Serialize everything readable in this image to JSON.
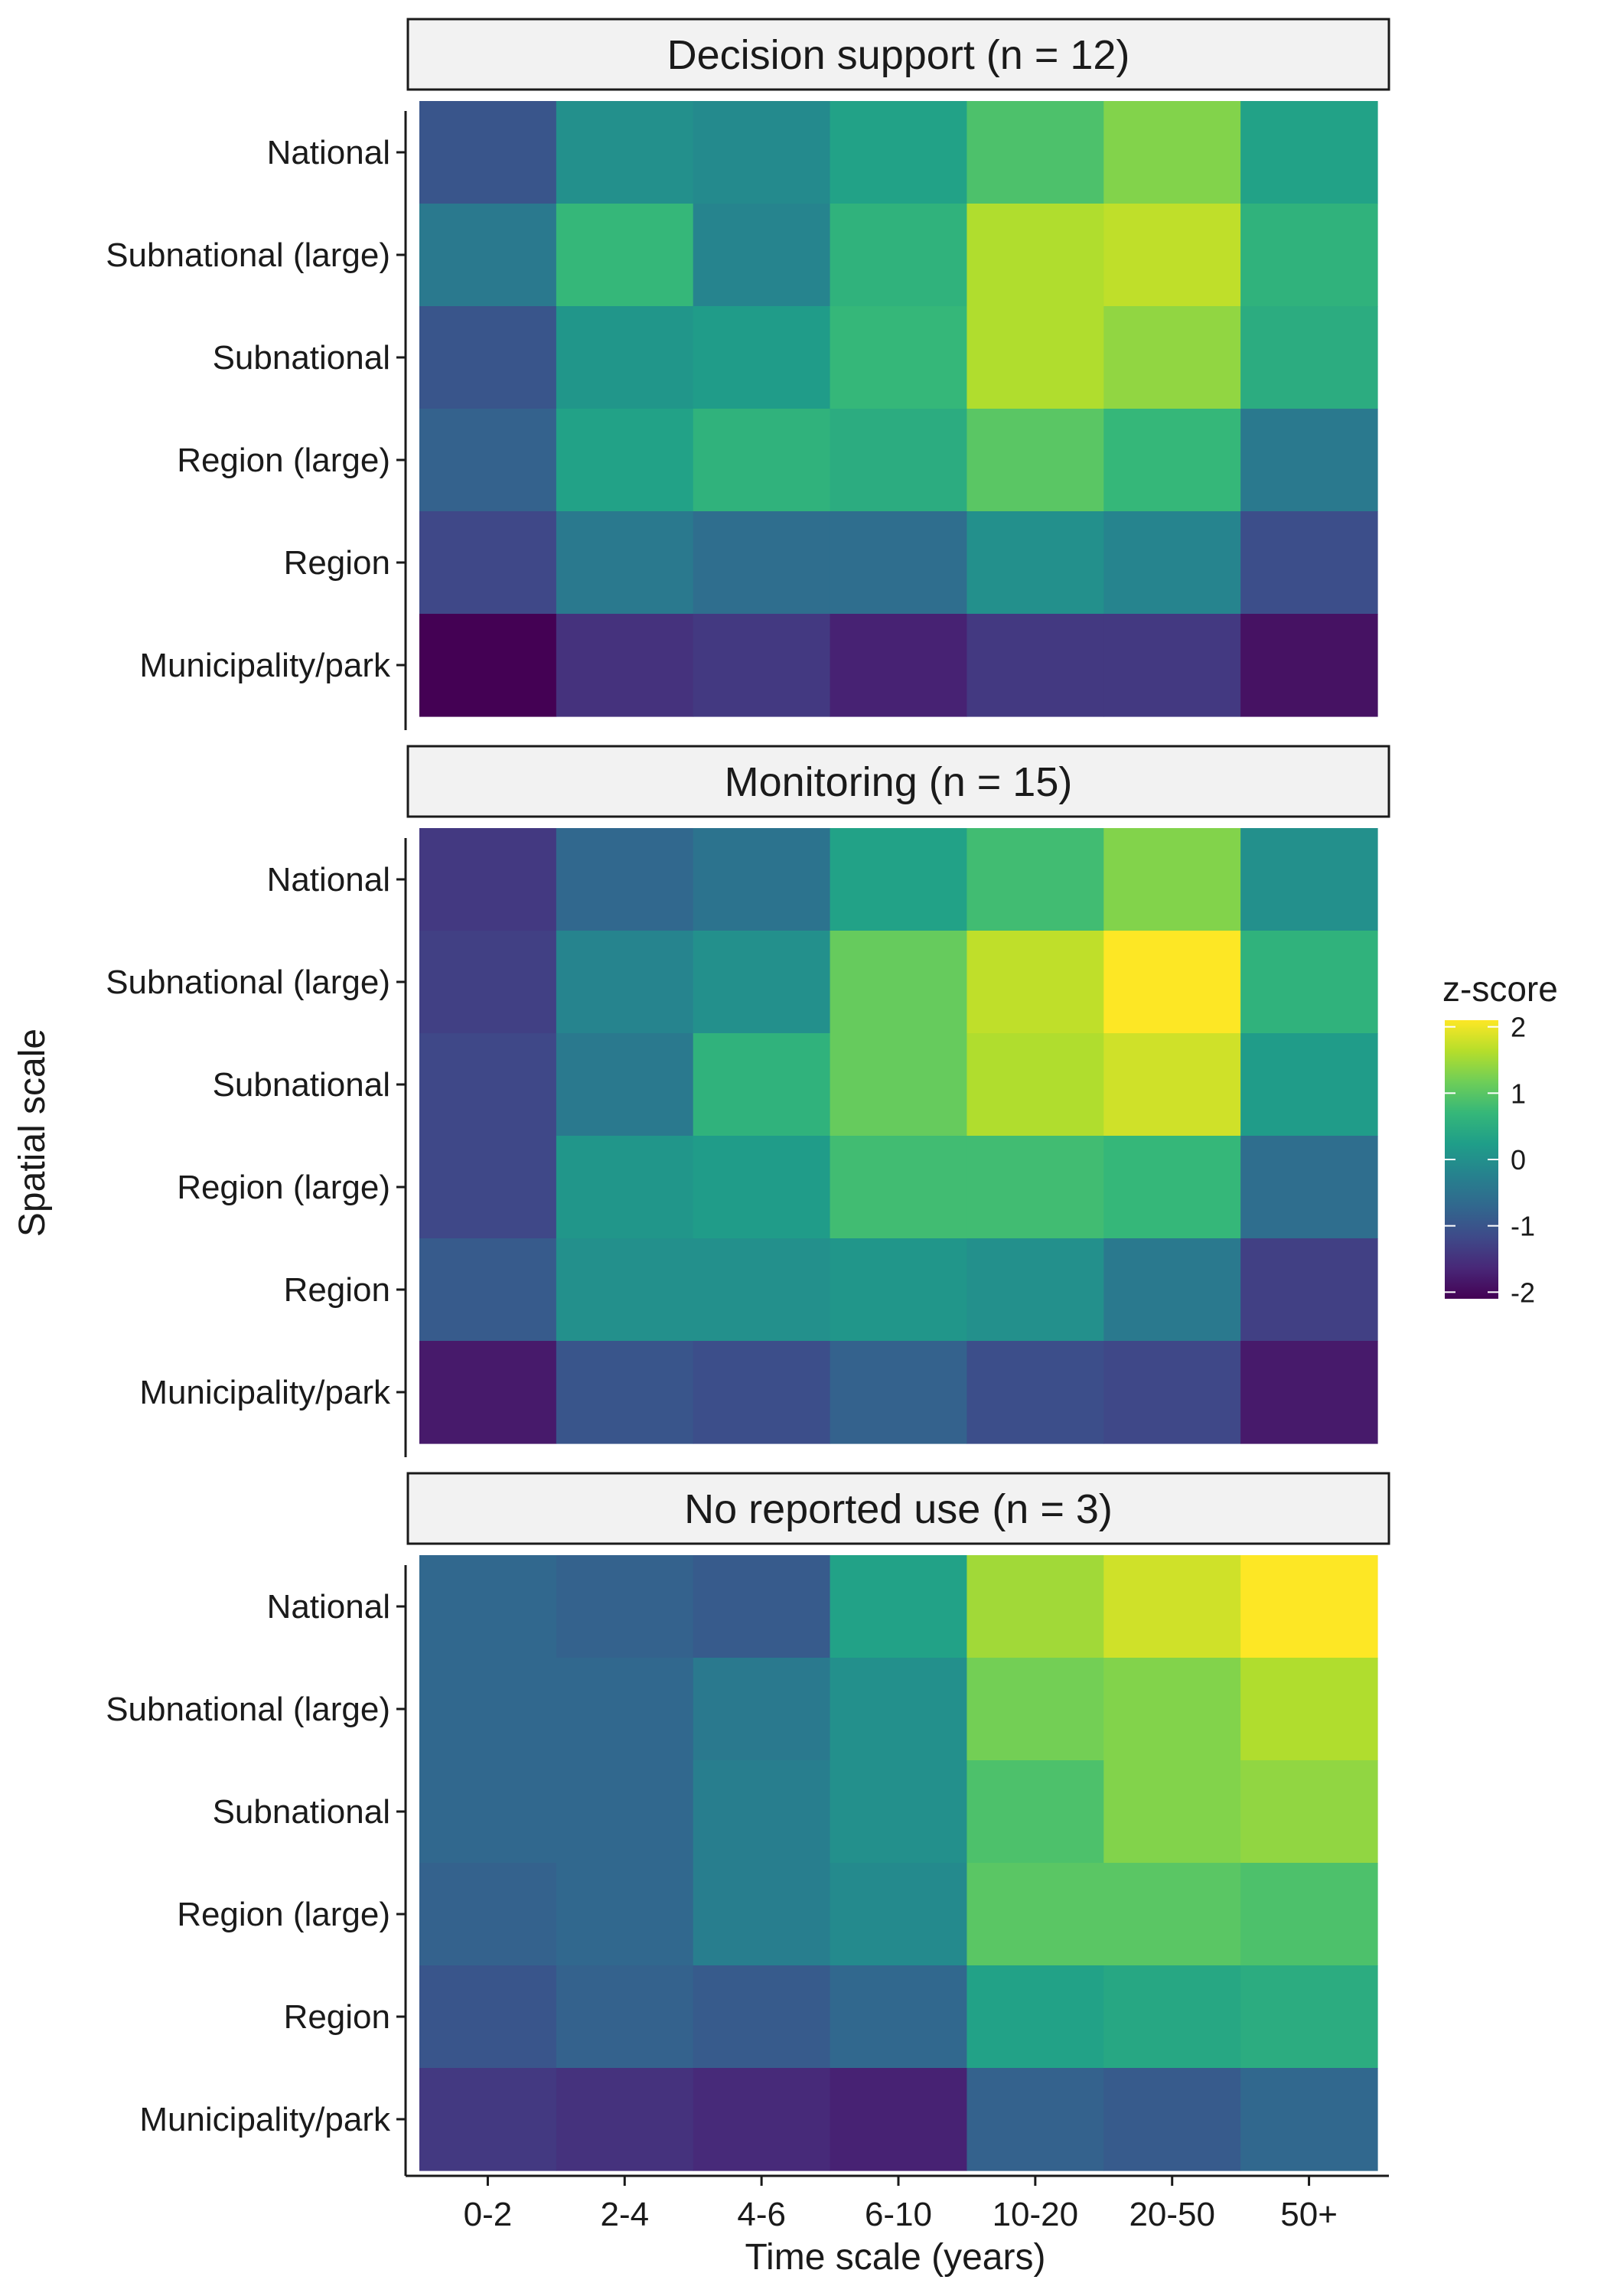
{
  "chart_data": {
    "type": "heatmap",
    "xlabel": "Time scale (years)",
    "ylabel": "Spatial scale",
    "x_categories": [
      "0-2",
      "2-4",
      "4-6",
      "6-10",
      "10-20",
      "20-50",
      "50+"
    ],
    "y_categories": [
      "National",
      "Subnational (large)",
      "Subnational",
      "Region (large)",
      "Region",
      "Municipality/park"
    ],
    "legend": {
      "title": "z-score",
      "ticks": [
        "2",
        "1",
        "0",
        "-1",
        "-2"
      ],
      "range": [
        -2.1,
        2.1
      ],
      "placement": "right",
      "colormap": "viridis",
      "colors": [
        "#440154",
        "#482878",
        "#3e4a89",
        "#31688e",
        "#26828e",
        "#1f9e89",
        "#35b779",
        "#6ece58",
        "#b5de2b",
        "#fde725"
      ]
    },
    "grid": false,
    "panels": [
      {
        "title": "Decision support (n = 12)",
        "values": [
          [
            -1.0,
            0.0,
            -0.1,
            0.3,
            0.9,
            1.3,
            0.3
          ],
          [
            -0.4,
            0.7,
            -0.2,
            0.6,
            1.6,
            1.7,
            0.6
          ],
          [
            -1.0,
            0.1,
            0.2,
            0.7,
            1.6,
            1.4,
            0.5
          ],
          [
            -0.8,
            0.3,
            0.6,
            0.5,
            1.0,
            0.7,
            -0.4
          ],
          [
            -1.2,
            -0.4,
            -0.6,
            -0.6,
            0.0,
            -0.2,
            -1.1
          ],
          [
            -2.1,
            -1.5,
            -1.4,
            -1.7,
            -1.4,
            -1.4,
            -1.9
          ]
        ]
      },
      {
        "title": "Monitoring (n = 15)",
        "values": [
          [
            -1.4,
            -0.7,
            -0.5,
            0.3,
            0.8,
            1.3,
            0.0
          ],
          [
            -1.3,
            -0.2,
            0.0,
            1.1,
            1.7,
            2.1,
            0.6
          ],
          [
            -1.2,
            -0.4,
            0.6,
            1.1,
            1.6,
            1.8,
            0.2
          ],
          [
            -1.2,
            0.1,
            0.2,
            0.8,
            0.8,
            0.7,
            -0.6
          ],
          [
            -0.9,
            0.0,
            0.0,
            0.1,
            0.0,
            -0.4,
            -1.3
          ],
          [
            -1.8,
            -1.0,
            -1.1,
            -0.8,
            -1.1,
            -1.2,
            -1.8
          ]
        ]
      },
      {
        "title": "No reported use (n = 3)",
        "values": [
          [
            -0.7,
            -0.8,
            -0.9,
            0.3,
            1.5,
            1.8,
            2.1
          ],
          [
            -0.7,
            -0.7,
            -0.4,
            0.0,
            1.2,
            1.3,
            1.6
          ],
          [
            -0.7,
            -0.7,
            -0.3,
            0.0,
            0.9,
            1.3,
            1.4
          ],
          [
            -0.8,
            -0.7,
            -0.3,
            -0.1,
            1.0,
            1.0,
            0.9
          ],
          [
            -1.0,
            -0.8,
            -0.9,
            -0.7,
            0.3,
            0.4,
            0.5
          ],
          [
            -1.4,
            -1.5,
            -1.6,
            -1.7,
            -0.8,
            -0.9,
            -0.7
          ]
        ]
      }
    ]
  }
}
